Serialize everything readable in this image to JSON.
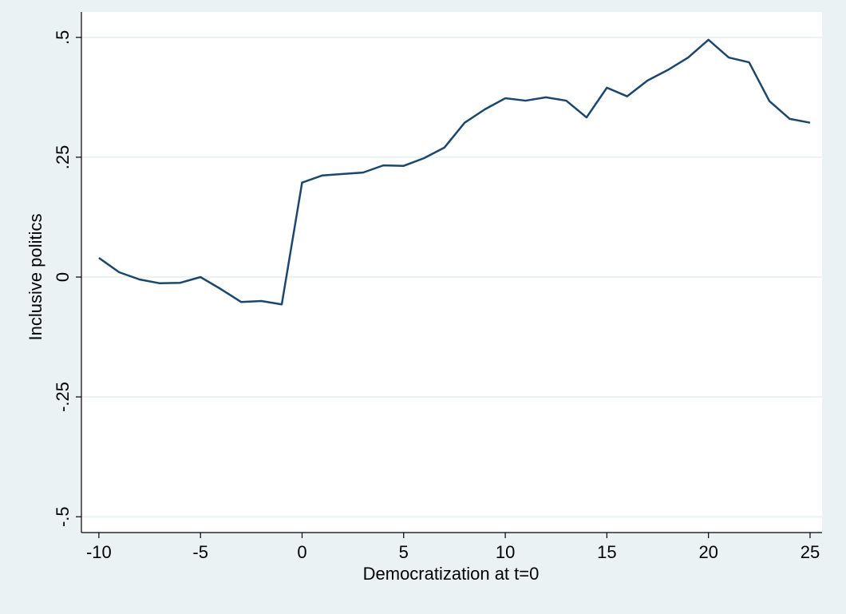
{
  "chart_data": {
    "type": "line",
    "x_label": "Democratization at t=0",
    "y_label": "Inclusive politics",
    "x": [
      -10,
      -9,
      -8,
      -7,
      -6,
      -5,
      -4,
      -3,
      -2,
      -1,
      0,
      1,
      2,
      3,
      4,
      5,
      6,
      7,
      8,
      9,
      10,
      11,
      12,
      13,
      14,
      15,
      16,
      17,
      18,
      19,
      20,
      21,
      22,
      23,
      24,
      25
    ],
    "series": [
      {
        "name": "Inclusive politics",
        "color": "#1a476f",
        "values": [
          0.04,
          0.01,
          -0.005,
          -0.013,
          -0.012,
          0.0,
          -0.025,
          -0.052,
          -0.05,
          -0.057,
          0.197,
          0.212,
          0.215,
          0.218,
          0.233,
          0.232,
          0.248,
          0.27,
          0.322,
          0.35,
          0.373,
          0.368,
          0.375,
          0.368,
          0.333,
          0.395,
          0.377,
          0.41,
          0.432,
          0.458,
          0.495,
          0.458,
          0.448,
          0.367,
          0.33,
          0.322
        ]
      }
    ],
    "xlim": [
      -10.86,
      25.59
    ],
    "xticks": [
      -10,
      -5,
      0,
      5,
      10,
      15,
      20,
      25
    ],
    "ylim": [
      -0.533,
      0.553
    ],
    "yticks": [
      {
        "value": -0.5,
        "label": "-.5"
      },
      {
        "value": -0.25,
        "label": "-.25"
      },
      {
        "value": 0,
        "label": "0"
      },
      {
        "value": 0.25,
        "label": ".25"
      },
      {
        "value": 0.5,
        "label": ".5"
      }
    ],
    "grid": true
  }
}
